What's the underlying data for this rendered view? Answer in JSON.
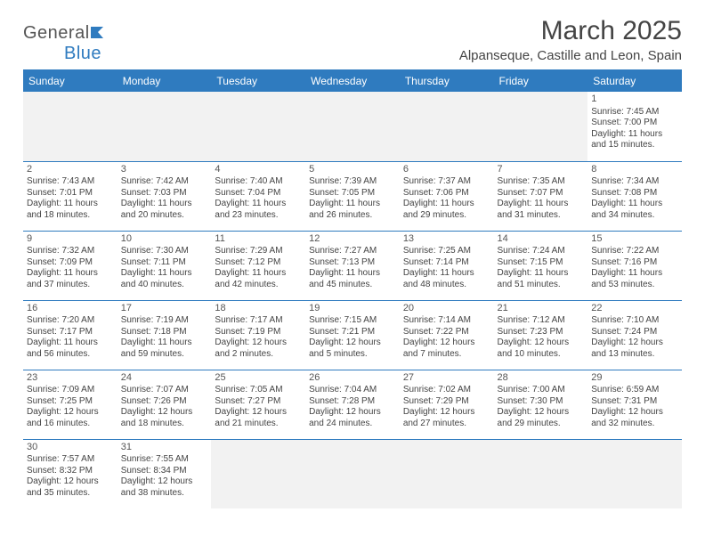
{
  "brand": {
    "p1": "General",
    "p2": "Blue"
  },
  "title": {
    "month": "March 2025",
    "location": "Alpanseque, Castille and Leon, Spain"
  },
  "colors": {
    "accent": "#2f7bbf",
    "header_text": "#ffffff",
    "rule": "#2f7bbf",
    "out_bg": "#f2f2f2",
    "text": "#444444"
  },
  "dow": [
    "Sunday",
    "Monday",
    "Tuesday",
    "Wednesday",
    "Thursday",
    "Friday",
    "Saturday"
  ],
  "weeks": [
    [
      {
        "out": true
      },
      {
        "out": true
      },
      {
        "out": true
      },
      {
        "out": true
      },
      {
        "out": true
      },
      {
        "out": true
      },
      {
        "n": "1",
        "sr": "Sunrise: 7:45 AM",
        "ss": "Sunset: 7:00 PM",
        "d1": "Daylight: 11 hours",
        "d2": "and 15 minutes."
      }
    ],
    [
      {
        "n": "2",
        "sr": "Sunrise: 7:43 AM",
        "ss": "Sunset: 7:01 PM",
        "d1": "Daylight: 11 hours",
        "d2": "and 18 minutes."
      },
      {
        "n": "3",
        "sr": "Sunrise: 7:42 AM",
        "ss": "Sunset: 7:03 PM",
        "d1": "Daylight: 11 hours",
        "d2": "and 20 minutes."
      },
      {
        "n": "4",
        "sr": "Sunrise: 7:40 AM",
        "ss": "Sunset: 7:04 PM",
        "d1": "Daylight: 11 hours",
        "d2": "and 23 minutes."
      },
      {
        "n": "5",
        "sr": "Sunrise: 7:39 AM",
        "ss": "Sunset: 7:05 PM",
        "d1": "Daylight: 11 hours",
        "d2": "and 26 minutes."
      },
      {
        "n": "6",
        "sr": "Sunrise: 7:37 AM",
        "ss": "Sunset: 7:06 PM",
        "d1": "Daylight: 11 hours",
        "d2": "and 29 minutes."
      },
      {
        "n": "7",
        "sr": "Sunrise: 7:35 AM",
        "ss": "Sunset: 7:07 PM",
        "d1": "Daylight: 11 hours",
        "d2": "and 31 minutes."
      },
      {
        "n": "8",
        "sr": "Sunrise: 7:34 AM",
        "ss": "Sunset: 7:08 PM",
        "d1": "Daylight: 11 hours",
        "d2": "and 34 minutes."
      }
    ],
    [
      {
        "n": "9",
        "sr": "Sunrise: 7:32 AM",
        "ss": "Sunset: 7:09 PM",
        "d1": "Daylight: 11 hours",
        "d2": "and 37 minutes."
      },
      {
        "n": "10",
        "sr": "Sunrise: 7:30 AM",
        "ss": "Sunset: 7:11 PM",
        "d1": "Daylight: 11 hours",
        "d2": "and 40 minutes."
      },
      {
        "n": "11",
        "sr": "Sunrise: 7:29 AM",
        "ss": "Sunset: 7:12 PM",
        "d1": "Daylight: 11 hours",
        "d2": "and 42 minutes."
      },
      {
        "n": "12",
        "sr": "Sunrise: 7:27 AM",
        "ss": "Sunset: 7:13 PM",
        "d1": "Daylight: 11 hours",
        "d2": "and 45 minutes."
      },
      {
        "n": "13",
        "sr": "Sunrise: 7:25 AM",
        "ss": "Sunset: 7:14 PM",
        "d1": "Daylight: 11 hours",
        "d2": "and 48 minutes."
      },
      {
        "n": "14",
        "sr": "Sunrise: 7:24 AM",
        "ss": "Sunset: 7:15 PM",
        "d1": "Daylight: 11 hours",
        "d2": "and 51 minutes."
      },
      {
        "n": "15",
        "sr": "Sunrise: 7:22 AM",
        "ss": "Sunset: 7:16 PM",
        "d1": "Daylight: 11 hours",
        "d2": "and 53 minutes."
      }
    ],
    [
      {
        "n": "16",
        "sr": "Sunrise: 7:20 AM",
        "ss": "Sunset: 7:17 PM",
        "d1": "Daylight: 11 hours",
        "d2": "and 56 minutes."
      },
      {
        "n": "17",
        "sr": "Sunrise: 7:19 AM",
        "ss": "Sunset: 7:18 PM",
        "d1": "Daylight: 11 hours",
        "d2": "and 59 minutes."
      },
      {
        "n": "18",
        "sr": "Sunrise: 7:17 AM",
        "ss": "Sunset: 7:19 PM",
        "d1": "Daylight: 12 hours",
        "d2": "and 2 minutes."
      },
      {
        "n": "19",
        "sr": "Sunrise: 7:15 AM",
        "ss": "Sunset: 7:21 PM",
        "d1": "Daylight: 12 hours",
        "d2": "and 5 minutes."
      },
      {
        "n": "20",
        "sr": "Sunrise: 7:14 AM",
        "ss": "Sunset: 7:22 PM",
        "d1": "Daylight: 12 hours",
        "d2": "and 7 minutes."
      },
      {
        "n": "21",
        "sr": "Sunrise: 7:12 AM",
        "ss": "Sunset: 7:23 PM",
        "d1": "Daylight: 12 hours",
        "d2": "and 10 minutes."
      },
      {
        "n": "22",
        "sr": "Sunrise: 7:10 AM",
        "ss": "Sunset: 7:24 PM",
        "d1": "Daylight: 12 hours",
        "d2": "and 13 minutes."
      }
    ],
    [
      {
        "n": "23",
        "sr": "Sunrise: 7:09 AM",
        "ss": "Sunset: 7:25 PM",
        "d1": "Daylight: 12 hours",
        "d2": "and 16 minutes."
      },
      {
        "n": "24",
        "sr": "Sunrise: 7:07 AM",
        "ss": "Sunset: 7:26 PM",
        "d1": "Daylight: 12 hours",
        "d2": "and 18 minutes."
      },
      {
        "n": "25",
        "sr": "Sunrise: 7:05 AM",
        "ss": "Sunset: 7:27 PM",
        "d1": "Daylight: 12 hours",
        "d2": "and 21 minutes."
      },
      {
        "n": "26",
        "sr": "Sunrise: 7:04 AM",
        "ss": "Sunset: 7:28 PM",
        "d1": "Daylight: 12 hours",
        "d2": "and 24 minutes."
      },
      {
        "n": "27",
        "sr": "Sunrise: 7:02 AM",
        "ss": "Sunset: 7:29 PM",
        "d1": "Daylight: 12 hours",
        "d2": "and 27 minutes."
      },
      {
        "n": "28",
        "sr": "Sunrise: 7:00 AM",
        "ss": "Sunset: 7:30 PM",
        "d1": "Daylight: 12 hours",
        "d2": "and 29 minutes."
      },
      {
        "n": "29",
        "sr": "Sunrise: 6:59 AM",
        "ss": "Sunset: 7:31 PM",
        "d1": "Daylight: 12 hours",
        "d2": "and 32 minutes."
      }
    ],
    [
      {
        "n": "30",
        "sr": "Sunrise: 7:57 AM",
        "ss": "Sunset: 8:32 PM",
        "d1": "Daylight: 12 hours",
        "d2": "and 35 minutes."
      },
      {
        "n": "31",
        "sr": "Sunrise: 7:55 AM",
        "ss": "Sunset: 8:34 PM",
        "d1": "Daylight: 12 hours",
        "d2": "and 38 minutes."
      },
      {
        "out": true
      },
      {
        "out": true
      },
      {
        "out": true
      },
      {
        "out": true
      },
      {
        "out": true
      }
    ]
  ]
}
